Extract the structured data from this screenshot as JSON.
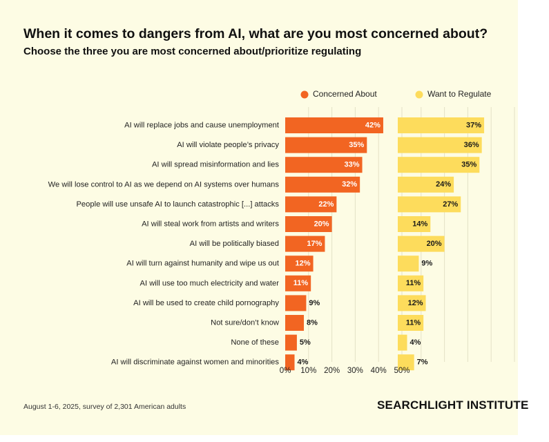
{
  "header": {
    "title": "When it comes to dangers from AI, what are you most concerned about?",
    "subtitle": "Choose the three you are most concerned about/prioritize regulating"
  },
  "footer": {
    "note": "August 1-6, 2025, survey of 2,301 American adults",
    "brand": "SEARCHLIGHT INSTITUTE"
  },
  "colors": {
    "background": "#fdfce4",
    "concerned": "#f26522",
    "regulate": "#fddc5c",
    "grid": "#e4e1c6"
  },
  "chart_data": {
    "type": "bar",
    "orientation": "horizontal",
    "title": "When it comes to dangers from AI, what are you most concerned about?",
    "subtitle": "Choose the three you are most concerned about/prioritize regulating",
    "categories": [
      "AI will replace jobs and cause unemployment",
      "AI will violate people’s privacy",
      "AI will spread misinformation and lies",
      "We will lose control to AI as we depend on AI systems over humans",
      "People will use unsafe AI to launch catastrophic [...] attacks",
      "AI will steal work from artists and writers",
      "AI will be politically biased",
      "AI will turn against humanity and wipe us out",
      "AI will use too much electricity and water",
      "AI will be used to create child pornography",
      "Not sure/don’t know",
      "None of these",
      "AI will discriminate against women and minorities"
    ],
    "series": [
      {
        "name": "Concerned About",
        "values": [
          42,
          35,
          33,
          32,
          22,
          20,
          17,
          12,
          11,
          9,
          8,
          5,
          4
        ]
      },
      {
        "name": "Want to Regulate",
        "values": [
          37,
          36,
          35,
          24,
          27,
          14,
          20,
          9,
          11,
          12,
          11,
          4,
          7
        ]
      }
    ],
    "xlim": [
      0,
      50
    ],
    "xticks": [
      0,
      10,
      20,
      30,
      40,
      50
    ],
    "xtick_labels": [
      "0%",
      "10%",
      "20%",
      "30%",
      "40%",
      "50%"
    ],
    "value_suffix": "%",
    "legend_position": "top",
    "grid": true
  }
}
